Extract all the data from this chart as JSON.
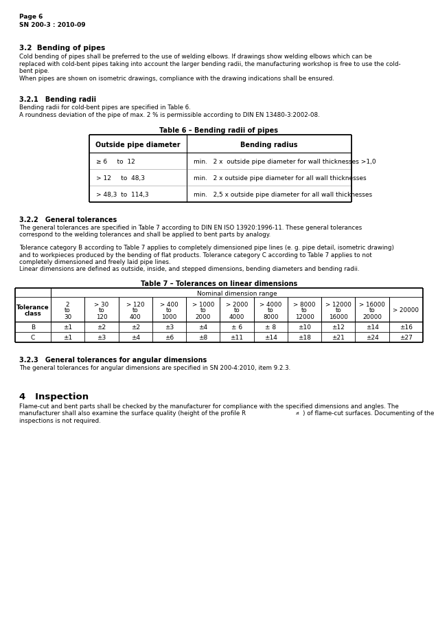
{
  "page_header": [
    "Page 6",
    "SN 200-3 : 2010-09"
  ],
  "section_32_title": "3.2  Bending of pipes",
  "section_32_body": "Cold bending of pipes shall be preferred to the use of welding elbows. If drawings show welding elbows which can be\nreplaced with cold-bent pipes taking into account the larger bending radii, the manufacturing workshop is free to use the cold-\nbent pipe.\nWhen pipes are shown on isometric drawings, compliance with the drawing indications shall be ensured.",
  "section_321_title": "3.2.1   Bending radii",
  "section_321_body": "Bending radii for cold-bent pipes are specified in Table 6.\nA roundness deviation of the pipe of max. 2 % is permissible according to DIN EN 13480-3:2002-08.",
  "table6_title": "Table 6 – Bending radii of pipes",
  "table6_col1_header": "Outside pipe diameter",
  "table6_col2_header": "Bending radius",
  "table6_rows": [
    [
      "≥ 6     to  12",
      "min.   2 x  outside pipe diameter for wall thicknesses >1,0"
    ],
    [
      "> 12     to  48,3",
      "min.   2 x outside pipe diameter for all wall thicknesses"
    ],
    [
      "> 48,3  to  114,3",
      "min.   2,5 x outside pipe diameter for all wall thicknesses"
    ]
  ],
  "section_322_title": "3.2.2   General tolerances",
  "section_322_body1": "The general tolerances are specified in Table 7 according to DIN EN ISO 13920:1996-11. These general tolerances\ncorrespond to the welding tolerances and shall be applied to bent parts by analogy.",
  "section_322_body2": "Tolerance category B according to Table 7 applies to completely dimensioned pipe lines (e. g. pipe detail, isometric drawing)\nand to workpieces produced by the bending of flat products. Tolerance category C according to Table 7 applies to not\ncompletely dimensioned and freely laid pipe lines.\nLinear dimensions are defined as outside, inside, and stepped dimensions, bending diameters and bending radii.",
  "table7_title": "Table 7 – Tolerances on linear dimensions",
  "table7_col_headers": [
    "Tolerance\nclass",
    "2\nto\n30",
    "> 30\nto\n120",
    "> 120\nto\n400",
    "> 400\nto\n1000",
    "> 1000\nto\n2000",
    "> 2000\nto\n4000",
    "> 4000\nto\n8000",
    "> 8000\nto\n12000",
    "> 12000\nto\n16000",
    "> 16000\nto\n20000",
    "> 20000"
  ],
  "table7_subheader": "Nominal dimension range",
  "table7_rows": [
    [
      "B",
      "±1",
      "±2",
      "±2",
      "±3",
      "±4",
      "± 6",
      "± 8",
      "±10",
      "±12",
      "±14",
      "±16"
    ],
    [
      "C",
      "±1",
      "±3",
      "±4",
      "±6",
      "±8",
      "±11",
      "±14",
      "±18",
      "±21",
      "±24",
      "±27"
    ]
  ],
  "section_323_title": "3.2.3   General tolerances for angular dimensions",
  "section_323_body": "The general tolerances for angular dimensions are specified in SN 200-4:2010, item 9.2.3.",
  "section_4_title": "4   Inspection",
  "section_4_body_line1": "Flame-cut and bent parts shall be checked by the manufacturer for compliance with the specified dimensions and angles. The",
  "section_4_body_line2": "manufacturer shall also examine the surface quality (height of the profile R",
  "section_4_body_line2b": ") of flame-cut surfaces. Documenting of the",
  "section_4_body_line3": "inspections is not required.",
  "bg_color": "#ffffff"
}
